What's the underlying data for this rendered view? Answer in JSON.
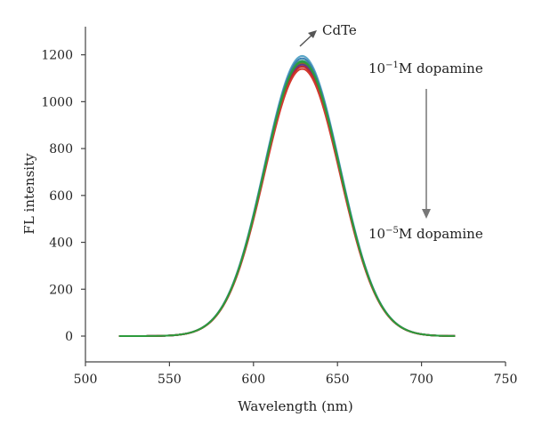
{
  "chart_data": {
    "type": "line",
    "title": "",
    "xlabel": "Wavelength (nm)",
    "ylabel": "FL intensity",
    "xlim": [
      500,
      750
    ],
    "ylim": [
      -110,
      1320
    ],
    "xticks": [
      500,
      550,
      600,
      650,
      700,
      750
    ],
    "yticks": [
      0,
      200,
      400,
      600,
      800,
      1000,
      1200
    ],
    "grid": false,
    "legend": "none",
    "peak_center": 629,
    "peak_sigma": 22.5,
    "x_range": [
      520,
      720
    ],
    "series": [
      {
        "color": "#5aa6c8",
        "peak": 1195
      },
      {
        "color": "#3b7fb0",
        "peak": 1185
      },
      {
        "color": "#2f9a72",
        "peak": 1175
      },
      {
        "color": "#8a6a2a",
        "peak": 1165
      },
      {
        "color": "#5b3b8c",
        "peak": 1158
      },
      {
        "color": "#c0262d",
        "peak": 1150
      },
      {
        "color": "#d13a2f",
        "peak": 1140
      },
      {
        "color": "#2c9b3c",
        "peak": 1170
      }
    ],
    "annotations": {
      "cdte": "CdTe",
      "top_prefix": "10",
      "top_exp": "−1",
      "top_suffix": "M dopamine",
      "bottom_prefix": "10",
      "bottom_exp": "−5",
      "bottom_suffix": "M dopamine"
    }
  }
}
